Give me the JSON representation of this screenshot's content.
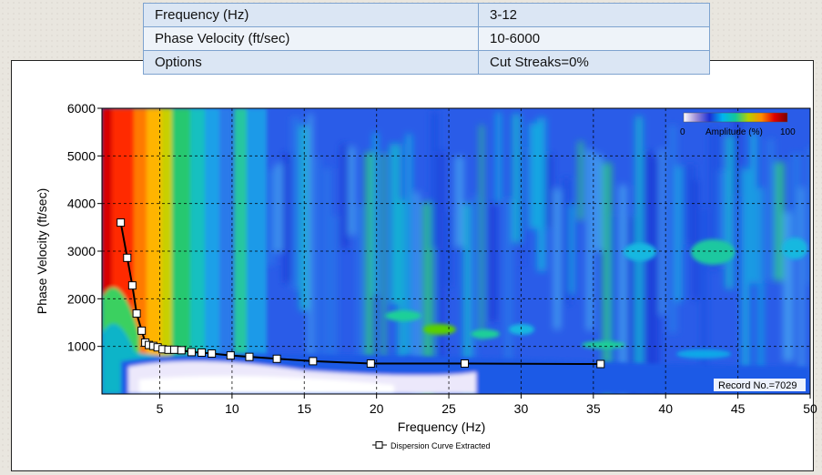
{
  "params_table": {
    "rows": [
      {
        "label": "Frequency (Hz)",
        "value": "3-12"
      },
      {
        "label": "Phase Velocity (ft/sec)",
        "value": "10-6000"
      },
      {
        "label": "Options",
        "value": "Cut Streaks=0%"
      }
    ]
  },
  "colorbar": {
    "label": "Amplitude (%)",
    "min_label": "0",
    "max_label": "100",
    "colors": [
      "#ffffff",
      "#9a8ad6",
      "#1a2fd6",
      "#00b4f0",
      "#12c89a",
      "#b8d000",
      "#ff8c00",
      "#e00000",
      "#7a0000"
    ]
  },
  "record_label": "Record No.=7029",
  "chart_data": {
    "type": "line",
    "xlabel": "Frequency (Hz)",
    "ylabel": "Phase Velocity (ft/sec)",
    "xlim": [
      1,
      50
    ],
    "ylim": [
      0,
      6000
    ],
    "x_ticks": [
      5,
      10,
      15,
      20,
      25,
      30,
      35,
      40,
      45,
      50
    ],
    "y_ticks": [
      1000,
      2000,
      3000,
      4000,
      5000,
      6000
    ],
    "grid": true,
    "legend_position": "bottom-center",
    "series": [
      {
        "name": "Dispersion Curve Extracted",
        "x": [
          2.3,
          2.75,
          3.1,
          3.4,
          3.75,
          4.0,
          4.25,
          4.55,
          4.85,
          5.2,
          5.6,
          6.0,
          6.5,
          7.2,
          7.9,
          8.6,
          9.9,
          11.2,
          13.1,
          15.6,
          19.6,
          26.1,
          35.5
        ],
        "y": [
          3600,
          2860,
          2280,
          1690,
          1330,
          1080,
          1030,
          1010,
          980,
          940,
          930,
          930,
          920,
          880,
          870,
          850,
          810,
          780,
          740,
          690,
          640,
          640,
          630
        ]
      }
    ]
  }
}
